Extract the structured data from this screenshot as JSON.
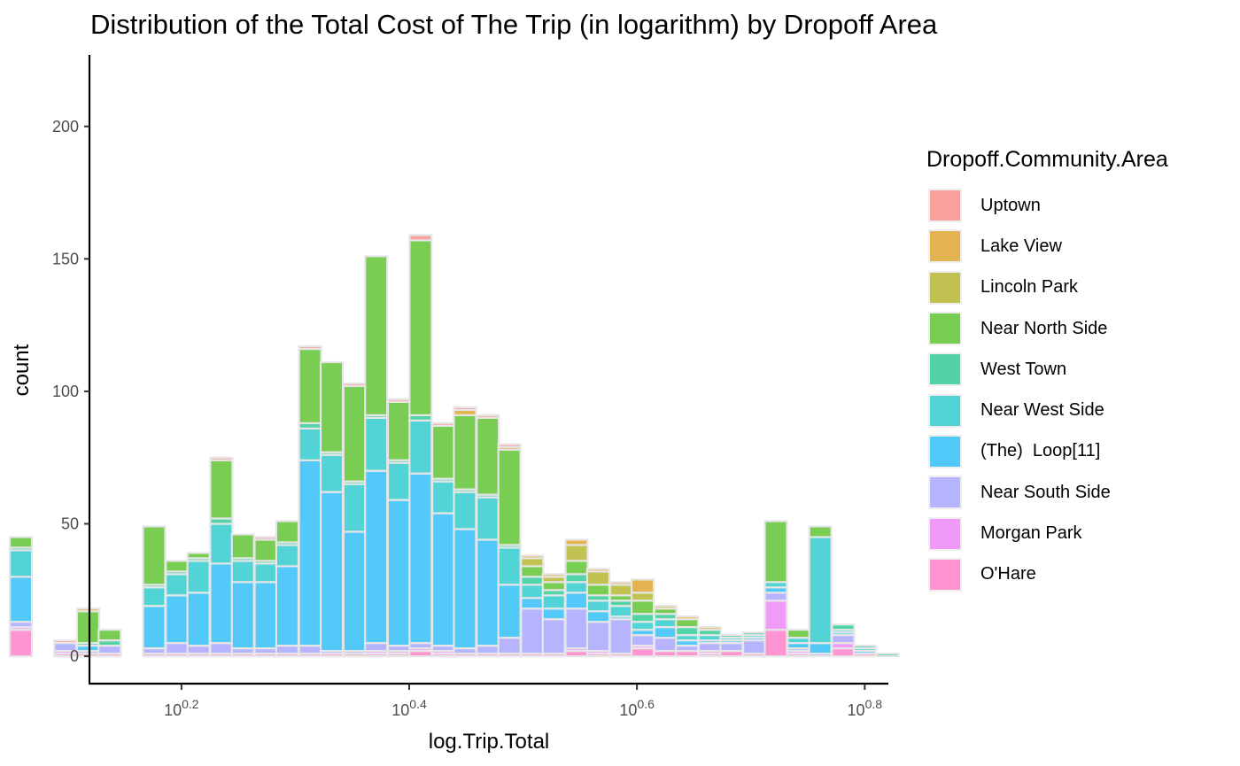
{
  "chart_data": {
    "type": "bar",
    "stacked": true,
    "title": "Distribution of the Total Cost of The Trip (in logarithm) by Dropoff Area",
    "xlabel": "log.Trip.Total",
    "ylabel": "count",
    "x_scale": "log10",
    "x_tick_labels": [
      {
        "base": "10",
        "exp": "0.2",
        "value": 0.2
      },
      {
        "base": "10",
        "exp": "0.4",
        "value": 0.4
      },
      {
        "base": "10",
        "exp": "0.6",
        "value": 0.6
      },
      {
        "base": "10",
        "exp": "0.8",
        "value": 0.8
      }
    ],
    "y_ticks": [
      0,
      50,
      100,
      150,
      200
    ],
    "xlim": [
      0.12,
      0.82
    ],
    "ylim": [
      -10,
      227
    ],
    "bin_width": 0.0194,
    "bins": [
      0.059,
      0.079,
      0.098,
      0.118,
      0.137,
      0.157,
      0.176,
      0.196,
      0.215,
      0.235,
      0.254,
      0.274,
      0.293,
      0.313,
      0.332,
      0.352,
      0.371,
      0.391,
      0.41,
      0.43,
      0.449,
      0.469,
      0.488,
      0.508,
      0.527,
      0.547,
      0.566,
      0.586,
      0.605,
      0.625,
      0.644,
      0.664,
      0.683,
      0.703,
      0.722,
      0.742,
      0.761,
      0.781,
      0.8,
      0.82
    ],
    "legend_title": "Dropoff.Community.Area",
    "legend_position": "right",
    "grid": false,
    "series": [
      {
        "name": "Uptown",
        "color": "#F8766D",
        "values": [
          0,
          0,
          1,
          0,
          0,
          0,
          0,
          0,
          0,
          1,
          0,
          1,
          0,
          1,
          0,
          1,
          0,
          1,
          2,
          1,
          1,
          1,
          1,
          0,
          0,
          0,
          0,
          0,
          0,
          0,
          0,
          0,
          0,
          0,
          0,
          0,
          0,
          0,
          0,
          0
        ]
      },
      {
        "name": "Lake View",
        "color": "#D89000",
        "values": [
          0,
          0,
          0,
          1,
          0,
          0,
          0,
          0,
          0,
          0,
          0,
          0,
          0,
          0,
          0,
          0,
          0,
          0,
          0,
          0,
          2,
          0,
          1,
          1,
          1,
          2,
          1,
          1,
          5,
          1,
          1,
          1,
          0,
          0,
          0,
          0,
          0,
          0,
          0,
          0
        ]
      },
      {
        "name": "Lincoln Park",
        "color": "#A3A500",
        "values": [
          0,
          0,
          0,
          0,
          0,
          0,
          0,
          0,
          0,
          0,
          0,
          0,
          0,
          0,
          0,
          0,
          0,
          0,
          0,
          0,
          0,
          0,
          0,
          3,
          2,
          6,
          5,
          4,
          3,
          0,
          0,
          0,
          0,
          0,
          0,
          0,
          0,
          0,
          0,
          0
        ]
      },
      {
        "name": "Near North Side",
        "color": "#39B600",
        "values": [
          4,
          0,
          0,
          12,
          4,
          0,
          22,
          4,
          2,
          22,
          9,
          8,
          8,
          28,
          34,
          36,
          60,
          22,
          66,
          20,
          28,
          29,
          36,
          4,
          3,
          5,
          4,
          2,
          5,
          2,
          3,
          0,
          0,
          0,
          23,
          3,
          4,
          0,
          0,
          0
        ]
      },
      {
        "name": "West Town",
        "color": "#00BF7D",
        "values": [
          1,
          0,
          0,
          1,
          2,
          0,
          1,
          1,
          1,
          2,
          1,
          1,
          1,
          2,
          1,
          1,
          1,
          1,
          2,
          1,
          1,
          1,
          1,
          3,
          2,
          3,
          2,
          2,
          3,
          2,
          3,
          2,
          1,
          1,
          0,
          0,
          0,
          2,
          1,
          1
        ]
      },
      {
        "name": "Near West Side",
        "color": "#00BFC4",
        "values": [
          10,
          0,
          0,
          0,
          0,
          0,
          7,
          8,
          12,
          15,
          8,
          7,
          8,
          12,
          14,
          18,
          20,
          14,
          20,
          12,
          14,
          16,
          14,
          5,
          5,
          4,
          4,
          4,
          3,
          3,
          2,
          2,
          1,
          1,
          2,
          2,
          40,
          1,
          1,
          0
        ]
      },
      {
        "name": "(The)  Loop[11]",
        "color": "#00B0F6",
        "values": [
          17,
          0,
          0,
          2,
          0,
          0,
          16,
          18,
          20,
          30,
          25,
          25,
          30,
          70,
          60,
          45,
          65,
          55,
          64,
          50,
          45,
          40,
          20,
          4,
          4,
          6,
          4,
          1,
          2,
          4,
          2,
          1,
          1,
          1,
          2,
          2,
          4,
          1,
          1,
          0
        ]
      },
      {
        "name": "Near South Side",
        "color": "#9590FF",
        "values": [
          2,
          0,
          3,
          1,
          3,
          0,
          2,
          4,
          3,
          4,
          2,
          2,
          3,
          3,
          1,
          1,
          3,
          2,
          2,
          2,
          2,
          3,
          6,
          17,
          13,
          15,
          11,
          13,
          4,
          5,
          2,
          3,
          3,
          5,
          3,
          1,
          1,
          3,
          0,
          0
        ]
      },
      {
        "name": "Morgan Park",
        "color": "#E76BF3",
        "values": [
          1,
          0,
          1,
          0,
          0,
          0,
          0,
          0,
          0,
          0,
          0,
          0,
          0,
          0,
          0,
          0,
          1,
          1,
          1,
          1,
          0,
          0,
          0,
          0,
          0,
          1,
          1,
          0,
          1,
          0,
          0,
          1,
          0,
          0,
          11,
          1,
          0,
          2,
          0,
          0
        ]
      },
      {
        "name": "O'Hare",
        "color": "#FF62BC",
        "values": [
          10,
          0,
          1,
          1,
          1,
          0,
          1,
          1,
          1,
          1,
          1,
          1,
          1,
          1,
          1,
          1,
          1,
          1,
          2,
          1,
          1,
          1,
          1,
          1,
          1,
          2,
          1,
          1,
          3,
          2,
          2,
          1,
          2,
          1,
          10,
          1,
          0,
          3,
          1,
          0
        ]
      }
    ]
  }
}
